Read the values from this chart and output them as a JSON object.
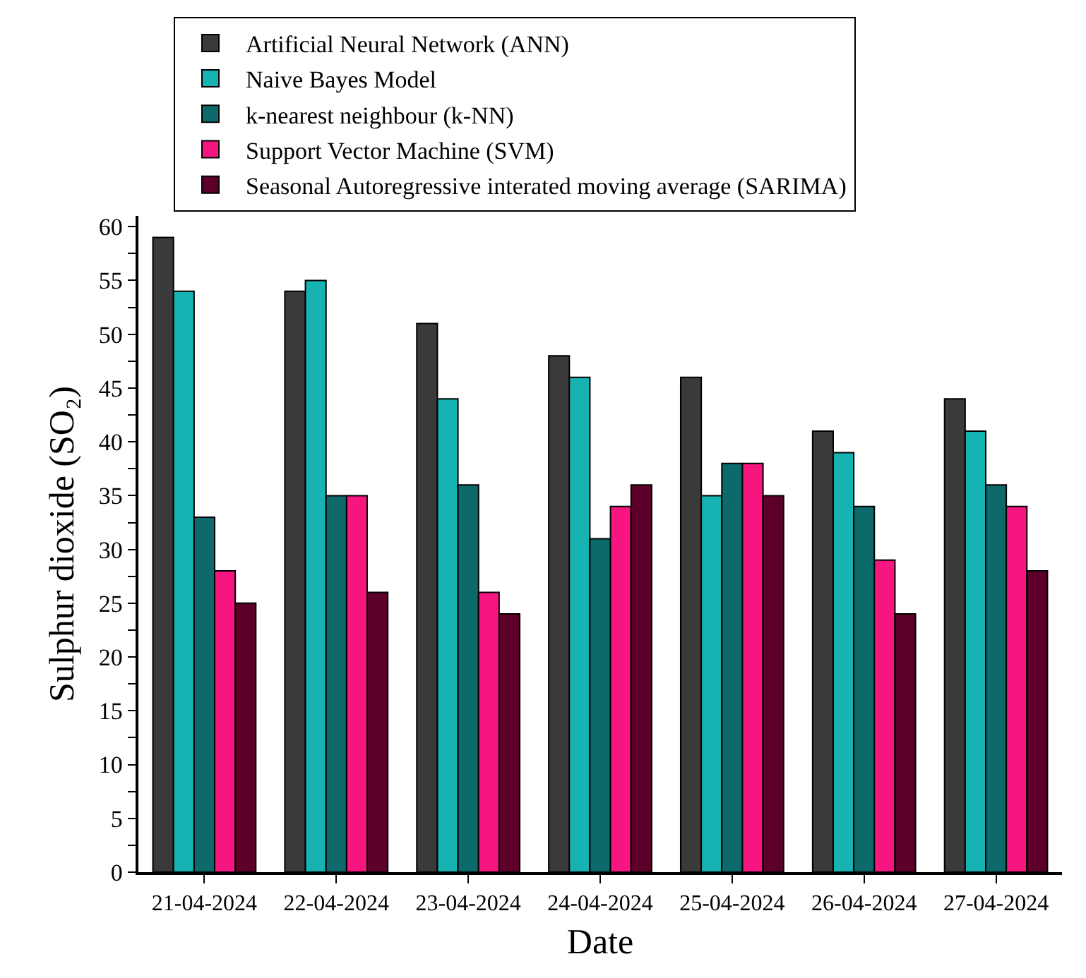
{
  "chart_data": {
    "type": "bar",
    "xlabel": "Date",
    "ylabel": "Sulphur dioxide (SO₂)",
    "categories": [
      "21-04-2024",
      "22-04-2024",
      "23-04-2024",
      "24-04-2024",
      "25-04-2024",
      "26-04-2024",
      "27-04-2024"
    ],
    "series": [
      {
        "name": "Artificial Neural Network (ANN)",
        "color": "#3a3a3a",
        "values": [
          59,
          54,
          51,
          48,
          46,
          41,
          44
        ]
      },
      {
        "name": "Naive Bayes Model",
        "color": "#17b3b3",
        "values": [
          54,
          55,
          44,
          46,
          35,
          39,
          41
        ]
      },
      {
        "name": "k-nearest neighbour (k-NN)",
        "color": "#0d6a6a",
        "values": [
          33,
          35,
          36,
          31,
          38,
          34,
          36
        ]
      },
      {
        "name": "Support Vector Machine (SVM)",
        "color": "#f7157f",
        "values": [
          28,
          35,
          26,
          34,
          38,
          29,
          34
        ]
      },
      {
        "name": "Seasonal Autoregressive interated moving average (SARIMA)",
        "color": "#5c0029",
        "values": [
          25,
          26,
          24,
          36,
          35,
          24,
          28
        ]
      }
    ],
    "ylim": [
      0,
      61
    ],
    "yticks": [
      0,
      {
        "value": 2.5,
        "label": null
      },
      5,
      {
        "value": 7.5,
        "label": null
      },
      10,
      {
        "value": 12.5,
        "label": null
      },
      15,
      {
        "value": 17.5,
        "label": null
      },
      20,
      {
        "value": 22.5,
        "label": null
      },
      25,
      {
        "value": 27.5,
        "label": null
      },
      30,
      {
        "value": 32.5,
        "label": null
      },
      35,
      {
        "value": 37.5,
        "label": null
      },
      40,
      {
        "value": 42.5,
        "label": null
      },
      45,
      {
        "value": 47.5,
        "label": null
      },
      50,
      {
        "value": 52.5,
        "label": null
      },
      55,
      {
        "value": 57.5,
        "label": null
      },
      60
    ],
    "legend": "top"
  }
}
